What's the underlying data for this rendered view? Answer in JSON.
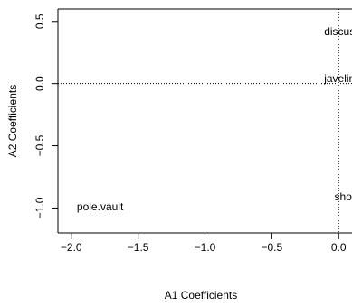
{
  "chart_data": {
    "type": "scatter",
    "title": "",
    "xlabel": "A1 Coefficients",
    "ylabel": "A2 Coefficients",
    "xlim": [
      -2.1,
      0.1
    ],
    "ylim": [
      -1.2,
      0.6
    ],
    "xticks": [
      -2.0,
      -1.5,
      -1.0,
      -0.5,
      0.0
    ],
    "xtick_labels": [
      "−2.0",
      "−1.5",
      "−1.0",
      "−0.5",
      "0.0"
    ],
    "yticks": [
      -1.0,
      -0.5,
      0.0,
      0.5
    ],
    "ytick_labels": [
      "−1.0",
      "−0.5",
      "0.0",
      "0.5"
    ],
    "reference_lines": {
      "x": 0,
      "y": 0,
      "style": "dotted"
    },
    "grid": false,
    "points": [
      {
        "label": "discus",
        "x": 0.0,
        "y": 0.42
      },
      {
        "label": "javelin",
        "x": 0.0,
        "y": 0.04
      },
      {
        "label": "shot",
        "x": 0.0,
        "y": -0.91
      },
      {
        "label": "pole.vault",
        "x": -1.85,
        "y": -0.99
      }
    ]
  }
}
